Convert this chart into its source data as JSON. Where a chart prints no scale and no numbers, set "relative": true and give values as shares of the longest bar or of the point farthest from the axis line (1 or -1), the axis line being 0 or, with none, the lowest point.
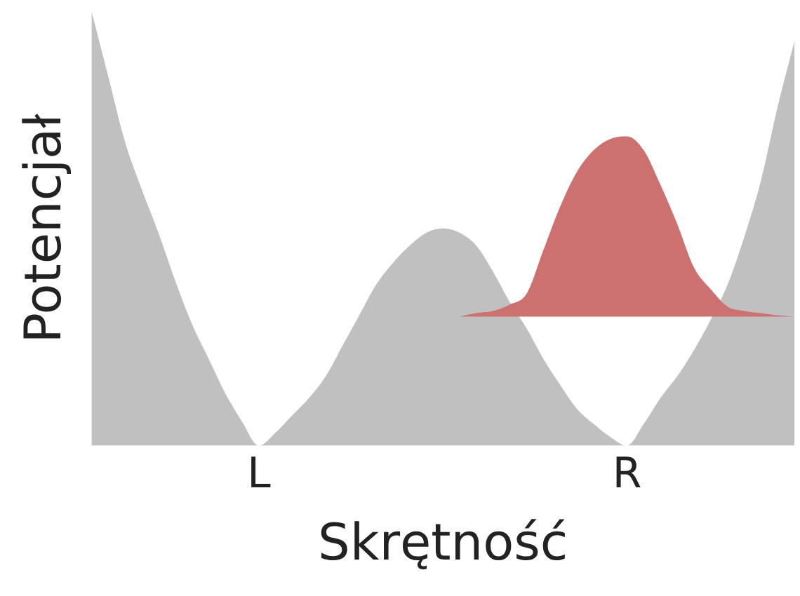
{
  "chart_data": {
    "type": "area",
    "relative": true,
    "xlabel": "Skrętność",
    "ylabel": "Potencjał",
    "grid": false,
    "legend": false,
    "categories": [
      null,
      null,
      null,
      null,
      null,
      null,
      null,
      null,
      null,
      null,
      "L",
      null,
      null,
      null,
      null,
      null,
      null,
      null,
      null,
      null,
      null,
      null,
      null,
      null,
      null,
      null,
      null,
      null,
      null,
      null,
      null,
      null,
      "R",
      null,
      null,
      null,
      null,
      null,
      null,
      null,
      null,
      null,
      null
    ],
    "series": [
      {
        "color": "#c0c0c0",
        "values": [
          1,
          0.85,
          0.7,
          0.59,
          0.49,
          0.38,
          0.28,
          0.2,
          0.12,
          0.055,
          0,
          0.03,
          0.07,
          0.11,
          0.16,
          0.23,
          0.3,
          0.37,
          0.42,
          0.46,
          0.49,
          0.5,
          0.49,
          0.46,
          0.4,
          0.33,
          0.27,
          0.2,
          0.14,
          0.085,
          0.05,
          0.02,
          0,
          0.05,
          0.11,
          0.16,
          0.22,
          0.29,
          0.37,
          0.48,
          0.61,
          0.78,
          0.93
        ]
      },
      {
        "color": "#cd7070",
        "values": [
          null,
          null,
          null,
          null,
          null,
          null,
          null,
          null,
          null,
          null,
          null,
          null,
          null,
          null,
          null,
          null,
          null,
          null,
          null,
          null,
          null,
          null,
          0.297,
          0.305,
          0.31,
          0.325,
          0.35,
          0.45,
          0.55,
          0.63,
          0.68,
          0.706,
          0.712,
          0.68,
          0.6,
          0.51,
          0.41,
          0.36,
          0.32,
          0.31,
          0.305,
          0.3,
          0.297
        ]
      }
    ]
  }
}
